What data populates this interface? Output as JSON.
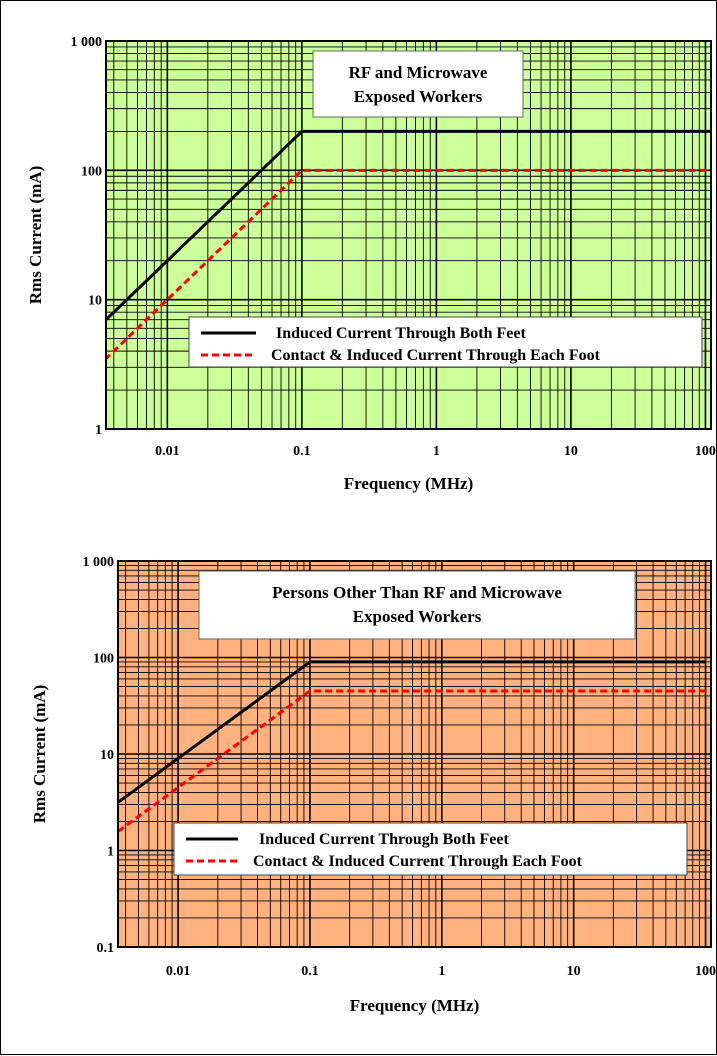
{
  "chart_data": [
    {
      "type": "line",
      "title": [
        "RF and Microwave",
        "Exposed Workers"
      ],
      "xlabel": "Frequency (MHz)",
      "ylabel": "Rms Current (mA)",
      "xscale": "log",
      "yscale": "log",
      "xlim": [
        0.0035,
        110
      ],
      "ylim": [
        1,
        1000
      ],
      "xticks": [
        "0.01",
        "0.1",
        "1",
        "10",
        "100"
      ],
      "xtick_values": [
        0.01,
        0.1,
        1,
        10,
        100
      ],
      "yticks": [
        "1",
        "10",
        "100",
        "1 000"
      ],
      "ytick_values": [
        1,
        10,
        100,
        1000
      ],
      "grid": true,
      "background_color": "#ccff99",
      "legend_placement": "lower-right",
      "series": [
        {
          "name": "Induced Current Through Both Feet",
          "color": "#000000",
          "style": "solid",
          "x": [
            0.003,
            0.1,
            110
          ],
          "y": [
            6,
            200,
            200
          ]
        },
        {
          "name": "Contact & Induced Current Through Each Foot",
          "color": "#ff0000",
          "style": "dashed",
          "x": [
            0.003,
            0.1,
            110
          ],
          "y": [
            3,
            100,
            100
          ]
        }
      ]
    },
    {
      "type": "line",
      "title": [
        "Persons Other Than RF and Microwave",
        "Exposed Workers"
      ],
      "xlabel": "Frequency (MHz)",
      "ylabel": "Rms Current (mA)",
      "xscale": "log",
      "yscale": "log",
      "xlim": [
        0.0035,
        110
      ],
      "ylim": [
        0.1,
        1000
      ],
      "xticks": [
        "0.01",
        "0.1",
        "1",
        "10",
        "100"
      ],
      "xtick_values": [
        0.01,
        0.1,
        1,
        10,
        100
      ],
      "yticks": [
        "0.1",
        "1",
        "10",
        "100",
        "1 000"
      ],
      "ytick_values": [
        0.1,
        1,
        10,
        100,
        1000
      ],
      "grid": true,
      "background_color": "#ffb27f",
      "legend_placement": "lower-right",
      "series": [
        {
          "name": "Induced Current Through Both Feet",
          "color": "#000000",
          "style": "solid",
          "x": [
            0.003,
            0.1,
            100
          ],
          "y": [
            2.7,
            90,
            90
          ]
        },
        {
          "name": "Contact & Induced Current Through Each Foot",
          "color": "#ff0000",
          "style": "dashed",
          "x": [
            0.003,
            0.1,
            100
          ],
          "y": [
            1.35,
            45,
            45
          ]
        }
      ]
    }
  ]
}
